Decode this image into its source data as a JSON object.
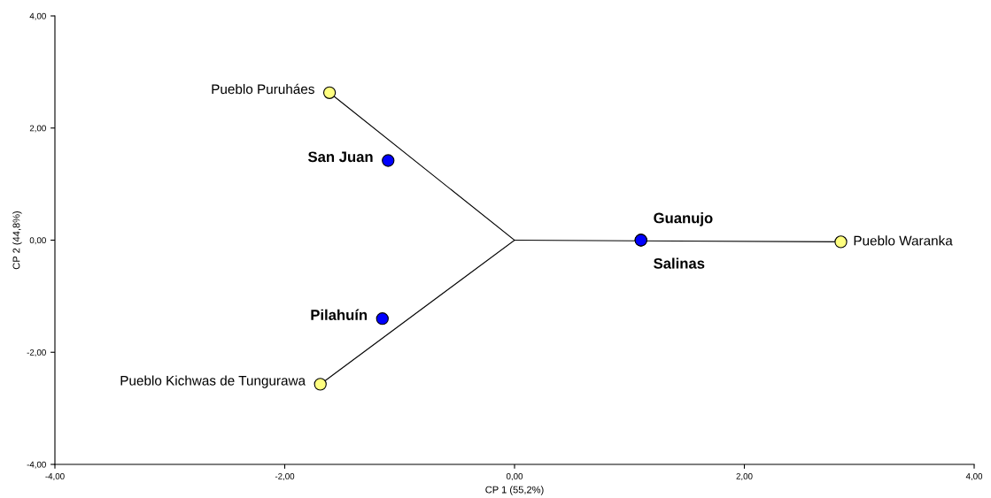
{
  "chart_data": {
    "type": "scatter",
    "xlabel": "CP 1 (55,2%)",
    "ylabel": "CP 2 (44,8%)",
    "xlim": [
      -4,
      4
    ],
    "ylim": [
      -4,
      4
    ],
    "xticks": [
      {
        "value": -4,
        "label": "-4,00"
      },
      {
        "value": -2,
        "label": "-2,00"
      },
      {
        "value": 0,
        "label": "0,00"
      },
      {
        "value": 2,
        "label": "2,00"
      },
      {
        "value": 4,
        "label": "4,00"
      }
    ],
    "yticks": [
      {
        "value": -4,
        "label": "-4,00"
      },
      {
        "value": -2,
        "label": "-2,00"
      },
      {
        "value": 0,
        "label": "0,00"
      },
      {
        "value": 2,
        "label": "2,00"
      },
      {
        "value": 4,
        "label": "4,00"
      }
    ],
    "grid": false,
    "series": [
      {
        "type": "line",
        "marker": "none",
        "color": "#000000",
        "x": [
          0,
          -1.61
        ],
        "values": [
          0,
          2.63
        ]
      },
      {
        "type": "line",
        "marker": "none",
        "color": "#000000",
        "x": [
          0,
          -1.69
        ],
        "values": [
          0,
          -2.57
        ]
      },
      {
        "type": "line",
        "marker": "none",
        "color": "#000000",
        "x": [
          0,
          2.84
        ],
        "values": [
          0,
          -0.03
        ]
      },
      {
        "marker": "circle",
        "color": "#ffff80",
        "x": [
          -1.61,
          -1.69,
          2.84
        ],
        "values": [
          2.63,
          -2.57,
          -0.03
        ]
      },
      {
        "marker": "circle",
        "color": "#0000ff",
        "x": [
          -1.1,
          -1.15,
          1.1,
          1.1
        ],
        "values": [
          1.42,
          -1.4,
          0.0,
          0.0
        ]
      }
    ],
    "annotations": [
      {
        "text": "Pueblo Puruháes",
        "x": -1.61,
        "y": 2.63
      },
      {
        "text": "Pueblo Kichwas de Tungurawa",
        "x": -1.69,
        "y": -2.57
      },
      {
        "text": "Pueblo Waranka",
        "x": 2.84,
        "y": -0.03
      },
      {
        "text": "San Juan",
        "x": -1.1,
        "y": 1.42
      },
      {
        "text": "Pilahuín",
        "x": -1.15,
        "y": -1.4
      },
      {
        "text": "Guanujo",
        "x": 1.1,
        "y": 0.0
      },
      {
        "text": "Salinas",
        "x": 1.1,
        "y": 0.0
      }
    ]
  }
}
